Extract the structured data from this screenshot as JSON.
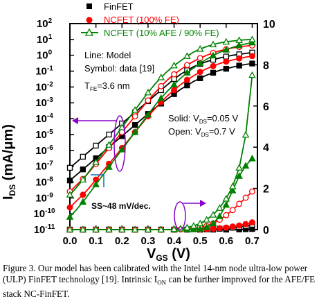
{
  "colors": {
    "finfet": "#000000",
    "ncfet_fe": "#ff0000",
    "ncfet_afe": "#008000",
    "annotation_purple": "#8b00c9",
    "ss_blue": "#0070c0"
  },
  "chart_data": {
    "type": "line",
    "xlabel_main": "V",
    "xlabel_sub": "GS",
    "xlabel_unit": " (V)",
    "ylabel_left_main": "I",
    "ylabel_left_sub": "DS",
    "ylabel_left_unit": " (mA/μm)",
    "xlim": [
      0.0,
      0.72
    ],
    "ylim_left": [
      -11,
      2
    ],
    "y_left_scale": "log",
    "ylim_right": [
      0,
      10
    ],
    "x_ticks": [
      "0.0",
      "0.1",
      "0.2",
      "0.3",
      "0.4",
      "0.5",
      "0.6",
      "0.7"
    ],
    "y_left_ticks": [
      "10^2",
      "10^1",
      "10^0",
      "10^-1",
      "10^-2",
      "10^-3",
      "10^-4",
      "10^-5",
      "10^-6",
      "10^-7",
      "10^-8",
      "10^-9",
      "10^-10",
      "10^-11"
    ],
    "y_right_ticks": [
      "0",
      "2",
      "4",
      "6",
      "8",
      "10"
    ],
    "legend_position": "top",
    "legend": [
      {
        "label": "FinFET",
        "marker": "square"
      },
      {
        "label": "NCFET (100% FE)",
        "marker": "circle"
      },
      {
        "label": "NCFET (10% AFE / 90% FE)",
        "marker": "triangle"
      }
    ],
    "annotations": {
      "line_model": "Line: Model",
      "symbol_data": "Symbol: data [19]",
      "tfe_main": "T",
      "tfe_sub": "FE",
      "tfe_value": "=3.6 nm",
      "solid_pre": "Solid: V",
      "solid_sub": "DS",
      "solid_val": "=0.05 V",
      "open_pre": "Open: V",
      "open_sub": "DS",
      "open_val": "=0.7 V",
      "ss": "SS~48 mV/dec."
    },
    "x": [
      0.0,
      0.025,
      0.05,
      0.075,
      0.1,
      0.125,
      0.15,
      0.175,
      0.2,
      0.225,
      0.25,
      0.275,
      0.3,
      0.325,
      0.35,
      0.375,
      0.4,
      0.425,
      0.45,
      0.475,
      0.5,
      0.525,
      0.55,
      0.575,
      0.6,
      0.625,
      0.65,
      0.675,
      0.7
    ],
    "series": [
      {
        "name": "FinFET",
        "axis": "log",
        "vds": "0.05 V",
        "values": [
          -7.9,
          -7.55,
          -7.2,
          -6.85,
          -6.5,
          -6.15,
          -5.8,
          -5.45,
          -5.1,
          -4.75,
          -4.4,
          -4.05,
          -3.7,
          -3.35,
          -3.05,
          -2.75,
          -2.45,
          -2.15,
          -1.9,
          -1.65,
          -1.45,
          -1.25,
          -1.1,
          -0.95,
          -0.85,
          -0.75,
          -0.65,
          -0.58,
          -0.52
        ]
      },
      {
        "name": "FinFET",
        "axis": "log",
        "vds": "0.7 V",
        "values": [
          -7.1,
          -6.75,
          -6.4,
          -6.05,
          -5.7,
          -5.35,
          -5.0,
          -4.65,
          -4.3,
          -3.95,
          -3.6,
          -3.25,
          -2.9,
          -2.55,
          -2.2,
          -1.85,
          -1.5,
          -1.2,
          -0.95,
          -0.72,
          -0.55,
          -0.4,
          -0.28,
          -0.17,
          -0.08,
          0.0,
          0.06,
          0.12,
          0.17
        ]
      },
      {
        "name": "NCFET (100% FE)",
        "axis": "log",
        "vds": "0.05 V",
        "values": [
          -9.6,
          -9.2,
          -8.8,
          -8.35,
          -7.85,
          -7.35,
          -6.85,
          -6.35,
          -5.85,
          -5.35,
          -4.85,
          -4.35,
          -3.85,
          -3.4,
          -2.95,
          -2.55,
          -2.2,
          -1.85,
          -1.55,
          -1.3,
          -1.05,
          -0.85,
          -0.68,
          -0.52,
          -0.4,
          -0.3,
          -0.2,
          -0.12,
          -0.05
        ]
      },
      {
        "name": "NCFET (100% FE)",
        "axis": "log",
        "vds": "0.7 V",
        "values": [
          -8.6,
          -8.2,
          -7.8,
          -7.35,
          -6.85,
          -6.35,
          -5.85,
          -5.35,
          -4.85,
          -4.35,
          -3.85,
          -3.35,
          -2.85,
          -2.4,
          -1.95,
          -1.55,
          -1.2,
          -0.9,
          -0.62,
          -0.38,
          -0.18,
          0.0,
          0.15,
          0.28,
          0.38,
          0.47,
          0.53,
          0.58,
          0.62
        ]
      },
      {
        "name": "NCFET (10% AFE / 90% FE)",
        "axis": "log",
        "vds": "0.05 V",
        "values": [
          -10.2,
          -9.75,
          -9.25,
          -8.7,
          -8.15,
          -7.6,
          -7.05,
          -6.5,
          -5.95,
          -5.4,
          -4.85,
          -4.3,
          -3.75,
          -3.2,
          -2.7,
          -2.25,
          -1.85,
          -1.45,
          -1.1,
          -0.8,
          -0.5,
          -0.25,
          -0.02,
          0.18,
          0.35,
          0.5,
          0.62,
          0.72,
          0.8
        ]
      },
      {
        "name": "NCFET (10% AFE / 90% FE)",
        "axis": "log",
        "vds": "0.7 V",
        "values": [
          -8.8,
          -8.35,
          -7.85,
          -7.3,
          -6.75,
          -6.2,
          -5.65,
          -5.1,
          -4.55,
          -4.0,
          -3.45,
          -2.9,
          -2.35,
          -1.85,
          -1.4,
          -1.0,
          -0.65,
          -0.35,
          -0.05,
          0.2,
          0.4,
          0.55,
          0.68,
          0.78,
          0.85,
          0.9,
          0.95,
          0.98,
          1.0
        ]
      },
      {
        "name": "FinFET",
        "axis": "linear",
        "vds": "0.05 V",
        "values": [
          0,
          0,
          0,
          0,
          0,
          0,
          0,
          0,
          0,
          0,
          0,
          0,
          0,
          0,
          0,
          0,
          0,
          0,
          0,
          0,
          0,
          0,
          0,
          0,
          0,
          0,
          0.01,
          0.02,
          0.03
        ]
      },
      {
        "name": "FinFET",
        "axis": "linear",
        "vds": "0.7 V",
        "values": [
          0,
          0,
          0,
          0,
          0,
          0,
          0,
          0,
          0,
          0,
          0,
          0,
          0,
          0,
          0,
          0,
          0,
          0,
          0,
          0,
          0,
          0.01,
          0.02,
          0.04,
          0.06,
          0.09,
          0.13,
          0.18,
          0.24
        ]
      },
      {
        "name": "NCFET (100% FE)",
        "axis": "linear",
        "vds": "0.05 V",
        "values": [
          0,
          0,
          0,
          0,
          0,
          0,
          0,
          0,
          0,
          0,
          0,
          0,
          0,
          0,
          0,
          0,
          0,
          0,
          0,
          0,
          0.01,
          0.02,
          0.04,
          0.07,
          0.1,
          0.15,
          0.2,
          0.27,
          0.35
        ]
      },
      {
        "name": "NCFET (100% FE)",
        "axis": "linear",
        "vds": "0.7 V",
        "values": [
          0,
          0,
          0,
          0,
          0,
          0,
          0,
          0,
          0,
          0,
          0,
          0,
          0,
          0,
          0,
          0,
          0,
          0.01,
          0.03,
          0.06,
          0.1,
          0.18,
          0.3,
          0.48,
          0.7,
          0.95,
          1.25,
          1.55,
          1.85
        ]
      },
      {
        "name": "NCFET (10% AFE / 90% FE)",
        "axis": "linear",
        "vds": "0.05 V",
        "values": [
          0,
          0,
          0,
          0,
          0,
          0,
          0,
          0,
          0,
          0,
          0,
          0,
          0,
          0,
          0,
          0,
          0,
          0,
          0,
          0.01,
          0.04,
          0.12,
          0.3,
          0.65,
          1.2,
          1.9,
          2.6,
          3.1,
          3.45
        ]
      },
      {
        "name": "NCFET (10% AFE / 90% FE)",
        "axis": "linear",
        "vds": "0.7 V",
        "values": [
          0,
          0,
          0,
          0,
          0,
          0,
          0,
          0,
          0,
          0,
          0,
          0,
          0,
          0,
          0,
          0,
          0.02,
          0.05,
          0.1,
          0.18,
          0.3,
          0.48,
          0.72,
          1.05,
          1.5,
          2.1,
          3.0,
          4.6,
          7.5
        ]
      }
    ]
  },
  "caption": {
    "text_1": "Figure 3. Our model has been calibrated with the Intel 14-nm node ultra-low power (ULP) FinFET technology [19]. Intrinsic I",
    "sub": "ON",
    "text_2": " can be further improved for the AFE/FE stack NC-FinFET."
  }
}
